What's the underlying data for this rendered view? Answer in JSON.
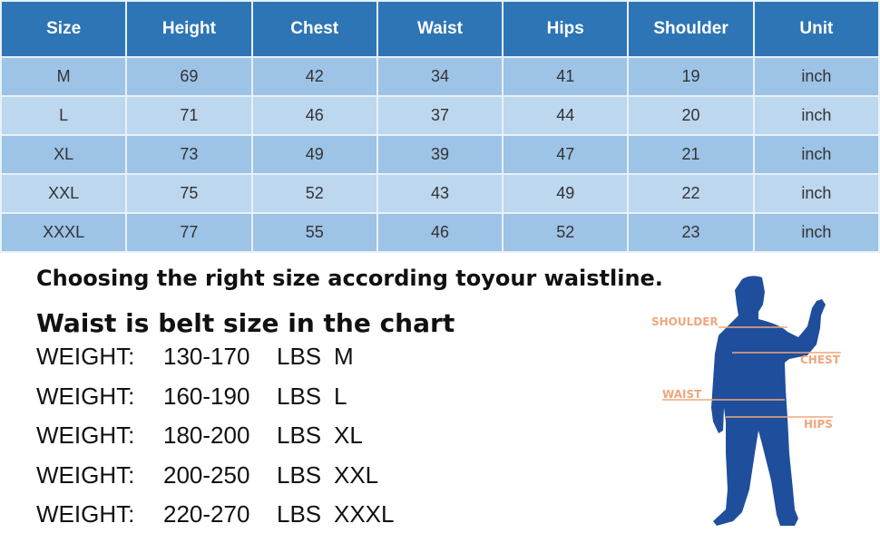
{
  "table": {
    "headers": [
      "Size",
      "Height",
      "Chest",
      "Waist",
      "Hips",
      "Shoulder",
      "Unit"
    ],
    "rows": [
      [
        "M",
        "69",
        "42",
        "34",
        "41",
        "19",
        "inch"
      ],
      [
        "L",
        "71",
        "46",
        "37",
        "44",
        "20",
        "inch"
      ],
      [
        "XL",
        "73",
        "49",
        "39",
        "47",
        "21",
        "inch"
      ],
      [
        "XXL",
        "75",
        "52",
        "43",
        "49",
        "22",
        "inch"
      ],
      [
        "XXXL",
        "77",
        "55",
        "46",
        "52",
        "23",
        "inch"
      ]
    ]
  },
  "text": {
    "line1": "Choosing the right size according toyour waistline.",
    "line2": "Waist is belt size in the chart"
  },
  "weights": [
    {
      "label": "WEIGHT:",
      "range": "130-170",
      "unit": "LBS",
      "size": "M"
    },
    {
      "label": "WEIGHT:",
      "range": "160-190",
      "unit": "LBS",
      "size": "L"
    },
    {
      "label": "WEIGHT:",
      "range": "180-200",
      "unit": "LBS",
      "size": "XL"
    },
    {
      "label": "WEIGHT:",
      "range": "200-250",
      "unit": "LBS",
      "size": "XXL"
    },
    {
      "label": "WEIGHT:",
      "range": "220-270",
      "unit": "LBS",
      "size": "XXXL"
    }
  ],
  "figure": {
    "labels": {
      "shoulder": "SHOULDER",
      "chest": "CHEST",
      "waist": "WAIST",
      "hips": "HIPS"
    },
    "silhouette_color": "#1f4e9c",
    "label_color": "#f0a77c"
  },
  "colors": {
    "header": "#2e75b6",
    "row_dark": "#9dc3e6",
    "row_light": "#bdd7ee"
  }
}
